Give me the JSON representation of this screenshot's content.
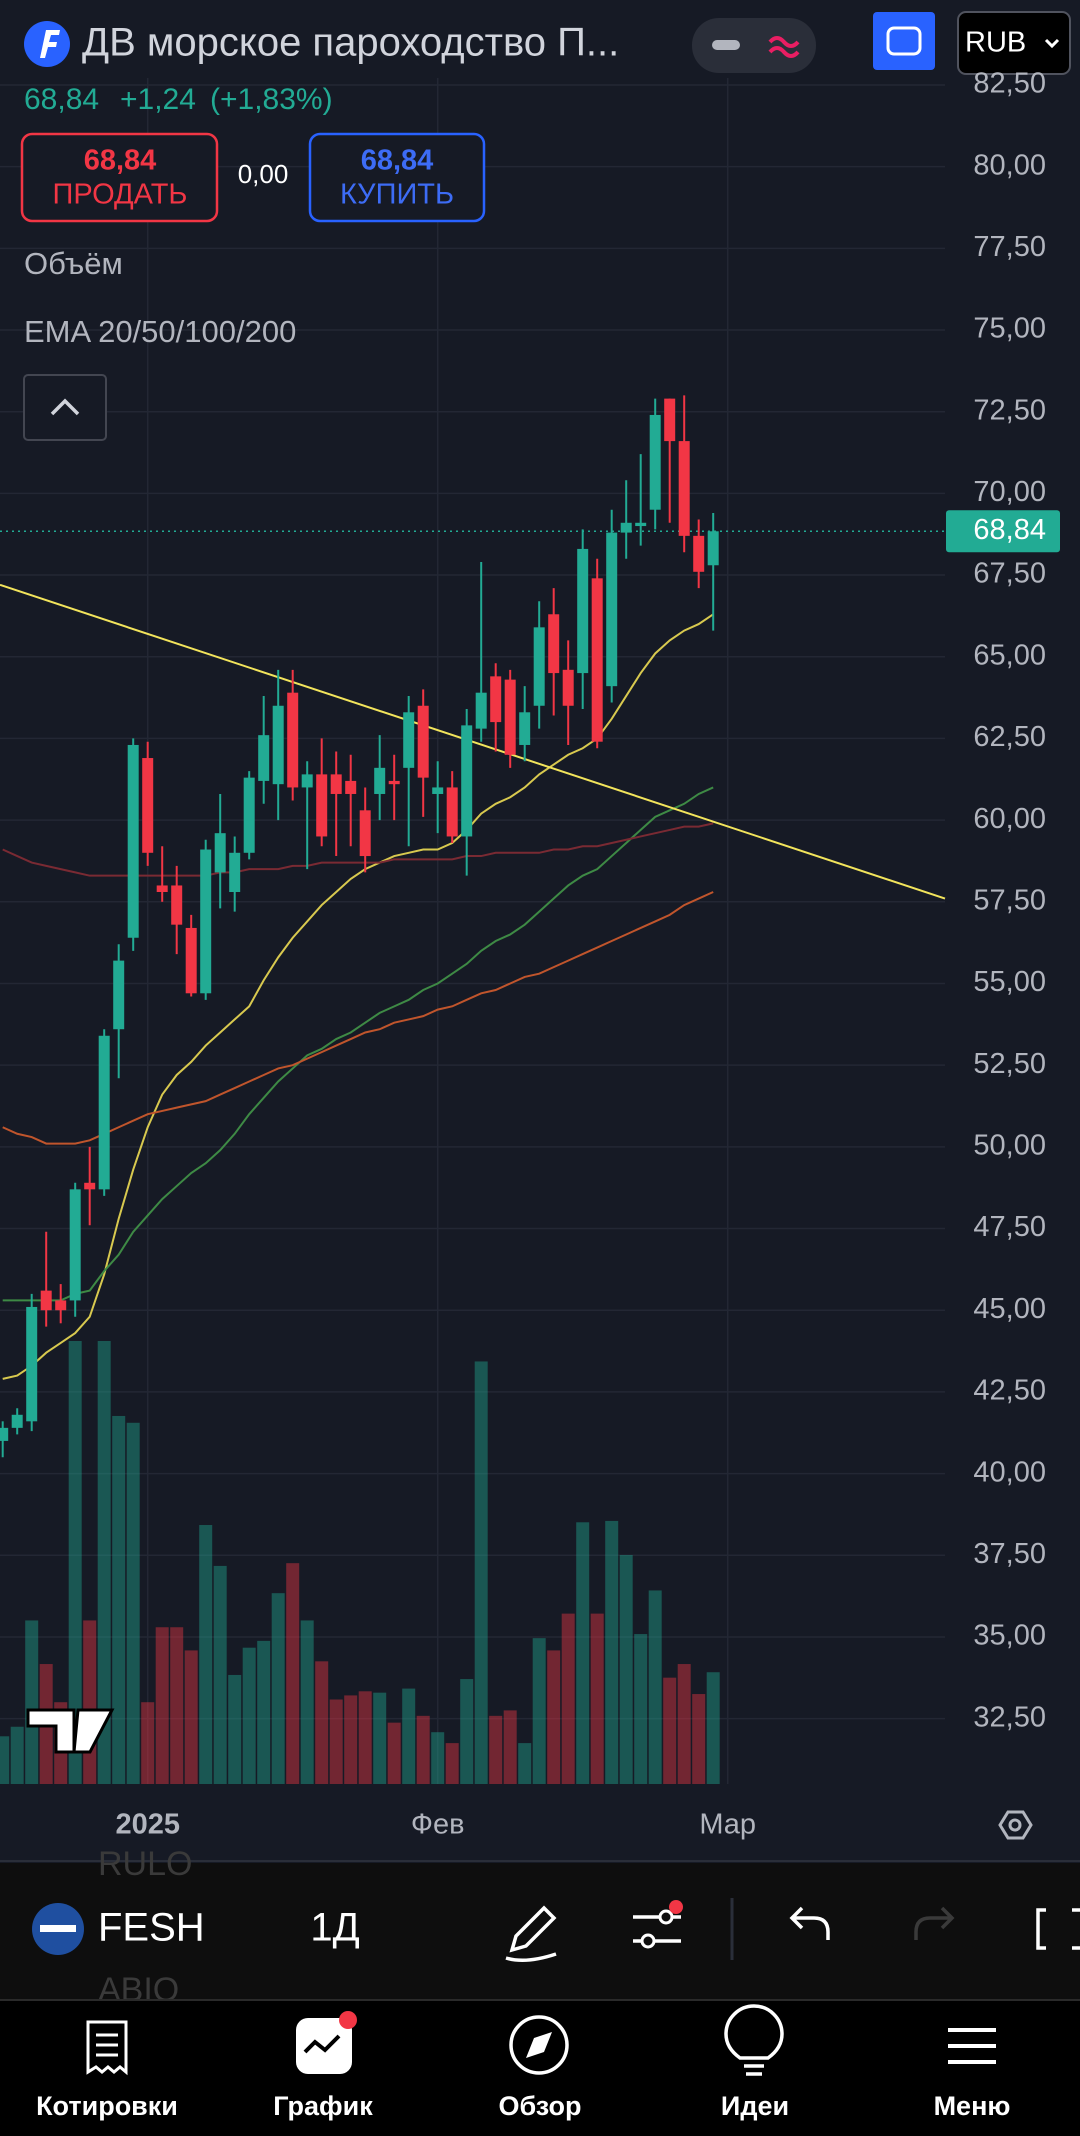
{
  "header": {
    "title": "ДВ морское пароходство П...",
    "price": "68,84",
    "change": "+1,24",
    "change_pct": "(+1,83%)",
    "currency": "RUB"
  },
  "trade": {
    "sell_price": "68,84",
    "sell_label": "ПРОДАТЬ",
    "spread": "0,00",
    "buy_price": "68,84",
    "buy_label": "КУПИТЬ"
  },
  "indicators": [
    "Объём",
    "EMA 20/50/100/200"
  ],
  "chart_data": {
    "type": "candlestick",
    "open": [
      41.0,
      41.4,
      41.6,
      45.6,
      45.3,
      45.3,
      48.9,
      48.7,
      53.6,
      56.4,
      61.9,
      58.0,
      58.0,
      56.7,
      54.7,
      58.4,
      57.8,
      59.0,
      61.2,
      61.1,
      63.9,
      61.0,
      61.4,
      61.4,
      61.2,
      60.3,
      60.8,
      61.2,
      61.6,
      63.5,
      60.8,
      61.0,
      59.5,
      62.8,
      64.4,
      64.3,
      62.3,
      63.5,
      66.3,
      64.6,
      64.5,
      67.4,
      64.1,
      68.8,
      69.0,
      69.5,
      72.9,
      71.6,
      68.7,
      67.8
    ],
    "high": [
      41.6,
      42.0,
      45.5,
      47.4,
      45.8,
      48.9,
      50.0,
      53.6,
      56.2,
      62.5,
      62.4,
      59.2,
      58.6,
      57.1,
      59.4,
      60.8,
      59.5,
      61.5,
      63.8,
      64.6,
      64.6,
      61.8,
      62.5,
      62.1,
      62.0,
      61.0,
      62.6,
      62.0,
      63.8,
      64.0,
      61.8,
      61.5,
      63.4,
      67.9,
      64.8,
      64.6,
      64.1,
      66.7,
      67.1,
      65.5,
      68.9,
      68.0,
      69.5,
      70.4,
      71.2,
      72.9,
      72.9,
      73.0,
      69.2,
      69.4
    ],
    "low": [
      40.5,
      41.2,
      41.3,
      44.5,
      44.6,
      44.8,
      47.6,
      48.5,
      52.1,
      56.0,
      58.6,
      57.5,
      55.9,
      54.6,
      54.5,
      57.3,
      57.2,
      58.8,
      60.5,
      60.0,
      60.6,
      58.5,
      59.2,
      58.9,
      59.2,
      58.4,
      60.0,
      60.0,
      59.2,
      60.1,
      59.6,
      59.3,
      58.3,
      62.4,
      62.1,
      61.6,
      61.8,
      62.8,
      63.2,
      62.3,
      63.4,
      62.2,
      63.6,
      68.0,
      68.4,
      68.9,
      69.1,
      68.2,
      67.1,
      65.8
    ],
    "close": [
      41.4,
      41.8,
      45.1,
      45.0,
      45.0,
      48.7,
      48.7,
      53.4,
      55.7,
      62.3,
      59.0,
      57.8,
      56.8,
      54.7,
      59.1,
      59.6,
      59.0,
      61.3,
      62.6,
      63.5,
      61.0,
      61.4,
      59.5,
      60.8,
      60.8,
      58.9,
      61.6,
      61.1,
      63.3,
      61.3,
      61.0,
      59.5,
      62.9,
      63.9,
      63.0,
      62.0,
      63.3,
      65.9,
      64.5,
      63.5,
      68.3,
      62.4,
      68.8,
      69.1,
      69.1,
      72.4,
      71.6,
      68.7,
      67.6,
      68.84
    ],
    "volume": [
      35,
      42,
      120,
      88,
      60,
      325,
      120,
      325,
      270,
      265,
      60,
      115,
      115,
      98,
      190,
      160,
      80,
      100,
      105,
      140,
      162,
      120,
      90,
      62,
      65,
      68,
      67,
      45,
      70,
      50,
      38,
      30,
      77,
      310,
      50,
      54,
      30,
      107,
      98,
      125,
      192,
      125,
      193,
      168,
      110,
      142,
      78,
      88,
      66,
      82
    ],
    "up_color": "#22ab94",
    "down_color": "#f23645",
    "series": [
      {
        "color": "#d8c94f",
        "values": [
          42.9,
          43.0,
          43.3,
          43.7,
          44.0,
          44.3,
          44.8,
          46.1,
          47.8,
          49.3,
          50.6,
          51.6,
          52.2,
          52.6,
          53.1,
          53.5,
          53.9,
          54.3,
          55.1,
          55.8,
          56.4,
          56.9,
          57.4,
          57.8,
          58.2,
          58.5,
          58.7,
          58.9,
          59.0,
          59.1,
          59.1,
          59.3,
          59.7,
          60.2,
          60.5,
          60.7,
          61.0,
          61.4,
          61.7,
          62.0,
          62.2,
          62.5,
          63.1,
          63.8,
          64.5,
          65.1,
          65.5,
          65.8,
          66.0,
          66.3
        ]
      },
      {
        "color": "#3e8a45",
        "values": [
          45.3,
          45.3,
          45.3,
          45.3,
          45.3,
          45.5,
          45.6,
          46.2,
          46.7,
          47.4,
          47.9,
          48.4,
          48.8,
          49.2,
          49.5,
          49.9,
          50.4,
          51.0,
          51.5,
          52.0,
          52.4,
          52.8,
          53.0,
          53.3,
          53.5,
          53.8,
          54.1,
          54.3,
          54.5,
          54.8,
          55.0,
          55.3,
          55.6,
          56.0,
          56.3,
          56.5,
          56.8,
          57.2,
          57.6,
          58.0,
          58.3,
          58.5,
          58.9,
          59.3,
          59.7,
          60.1,
          60.3,
          60.5,
          60.8,
          61.0
        ]
      },
      {
        "color": "#c0552c",
        "values": [
          50.6,
          50.4,
          50.3,
          50.1,
          50.1,
          50.1,
          50.2,
          50.4,
          50.6,
          50.8,
          51.0,
          51.1,
          51.2,
          51.3,
          51.4,
          51.6,
          51.8,
          52.0,
          52.2,
          52.4,
          52.5,
          52.7,
          52.9,
          53.1,
          53.3,
          53.5,
          53.6,
          53.8,
          53.9,
          54.0,
          54.2,
          54.3,
          54.5,
          54.7,
          54.8,
          55.0,
          55.2,
          55.3,
          55.5,
          55.7,
          55.9,
          56.1,
          56.3,
          56.5,
          56.7,
          56.9,
          57.1,
          57.4,
          57.6,
          57.8
        ]
      },
      {
        "color": "#7a2a33",
        "values": [
          59.1,
          58.9,
          58.7,
          58.6,
          58.5,
          58.4,
          58.3,
          58.3,
          58.3,
          58.3,
          58.3,
          58.3,
          58.3,
          58.3,
          58.3,
          58.4,
          58.4,
          58.5,
          58.5,
          58.5,
          58.6,
          58.6,
          58.7,
          58.7,
          58.7,
          58.7,
          58.7,
          58.8,
          58.8,
          58.8,
          58.8,
          58.8,
          58.9,
          58.9,
          59.0,
          59.0,
          59.0,
          59.0,
          59.1,
          59.1,
          59.2,
          59.2,
          59.3,
          59.4,
          59.5,
          59.6,
          59.7,
          59.8,
          59.8,
          59.9
        ]
      }
    ],
    "trendline": {
      "color": "#f2e45c",
      "values": [
        67.2,
        57.6
      ]
    },
    "ylim": [
      30.5,
      85.1
    ],
    "yticks": [
      {
        "value": 82.5,
        "label": "82,50"
      },
      {
        "value": 80,
        "label": "80,00"
      },
      {
        "value": 77.5,
        "label": "77,50"
      },
      {
        "value": 75,
        "label": "75,00"
      },
      {
        "value": 72.5,
        "label": "72,50"
      },
      {
        "value": 70,
        "label": "70,00"
      },
      {
        "value": 67.5,
        "label": "67,50"
      },
      {
        "value": 65,
        "label": "65,00"
      },
      {
        "value": 62.5,
        "label": "62,50"
      },
      {
        "value": 60,
        "label": "60,00"
      },
      {
        "value": 57.5,
        "label": "57,50"
      },
      {
        "value": 55,
        "label": "55,00"
      },
      {
        "value": 52.5,
        "label": "52,50"
      },
      {
        "value": 50,
        "label": "50,00"
      },
      {
        "value": 47.5,
        "label": "47,50"
      },
      {
        "value": 45,
        "label": "45,00"
      },
      {
        "value": 42.5,
        "label": "42,50"
      },
      {
        "value": 40,
        "label": "40,00"
      },
      {
        "value": 37.5,
        "label": "37,50"
      },
      {
        "value": 35,
        "label": "35,00"
      },
      {
        "value": 32.5,
        "label": "32,50"
      }
    ],
    "xticks": [
      {
        "value": 10,
        "label": "2025"
      },
      {
        "value": 30,
        "label": "Фев"
      },
      {
        "value": 50,
        "label": "Мар"
      }
    ],
    "last_price": {
      "value": 68.84,
      "label": "68,84"
    },
    "grid": true
  },
  "toolbar": {
    "symbol": "FESH",
    "interval": "1Д",
    "watchlist": [
      "RULO",
      "ABIO"
    ]
  },
  "nav": [
    "Котировки",
    "График",
    "Обзор",
    "Идеи",
    "Меню"
  ]
}
